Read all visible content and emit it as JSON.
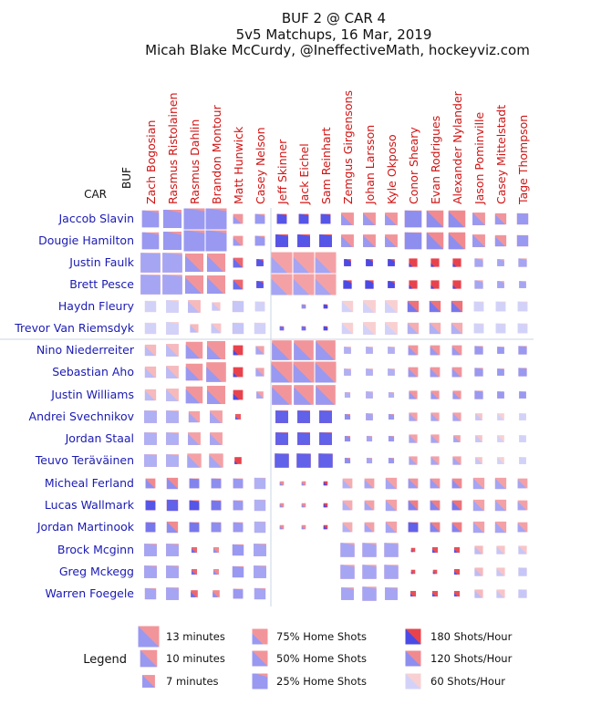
{
  "chart_data": {
    "type": "heatmap",
    "title": [
      "BUF 2 @ CAR 4",
      "5v5 Matchups, 16 Mar, 2019",
      "Micah Blake McCurdy, @IneffectiveMath, hockeyviz.com"
    ],
    "away_team": "BUF",
    "home_team": "CAR",
    "columns": [
      "Zach Bogosian",
      "Rasmus Ristolainen",
      "Rasmus Dahlin",
      "Brandon Montour",
      "Matt Hunwick",
      "Casey Nelson",
      "Jeff Skinner",
      "Jack Eichel",
      "Sam Reinhart",
      "Zemgus Girgensons",
      "Johan Larsson",
      "Kyle Okposo",
      "Conor Sheary",
      "Evan Rodrigues",
      "Alexander Nylander",
      "Jason Pominville",
      "Casey Mittelstadt",
      "Tage Thompson"
    ],
    "rows": [
      "Jaccob Slavin",
      "Dougie Hamilton",
      "Justin Faulk",
      "Brett Pesce",
      "Haydn Fleury",
      "Trevor Van Riemsdyk",
      "Nino Niederreiter",
      "Sebastian Aho",
      "Justin Williams",
      "Andrei Svechnikov",
      "Jordan Staal",
      "Teuvo Teräväinen",
      "Micheal Ferland",
      "Lucas Wallmark",
      "Jordan Martinook",
      "Brock Mcginn",
      "Greg Mckegg",
      "Warren Foegele"
    ],
    "minutes": [
      [
        10,
        11,
        13,
        13,
        5,
        5,
        5,
        5,
        5,
        7,
        7,
        7,
        10,
        10,
        10,
        7,
        6,
        6
      ],
      [
        10,
        11,
        13,
        13,
        5,
        5,
        7,
        7,
        7,
        7,
        7,
        7,
        10,
        10,
        10,
        7,
        6,
        6
      ],
      [
        12,
        12,
        11,
        11,
        5,
        3,
        13,
        13,
        13,
        3,
        3,
        3,
        4,
        4,
        4,
        4,
        3,
        4
      ],
      [
        12,
        12,
        11,
        11,
        5,
        3,
        13,
        13,
        13,
        4,
        4,
        3,
        4,
        4,
        4,
        4,
        3,
        3
      ],
      [
        6,
        7,
        7,
        4,
        6,
        5,
        0,
        1,
        1,
        6,
        7,
        7,
        6,
        6,
        6,
        5,
        5,
        5
      ],
      [
        6,
        7,
        4,
        5,
        6,
        6,
        1,
        1,
        1,
        6,
        7,
        7,
        6,
        6,
        6,
        5,
        5,
        5
      ],
      [
        6,
        7,
        10,
        11,
        5,
        4,
        12,
        12,
        12,
        3,
        3,
        3,
        5,
        5,
        5,
        4,
        3,
        4
      ],
      [
        6,
        7,
        10,
        12,
        5,
        4,
        13,
        13,
        13,
        3,
        3,
        3,
        5,
        5,
        5,
        4,
        3,
        4
      ],
      [
        6,
        7,
        10,
        11,
        5,
        3,
        12,
        12,
        12,
        2,
        3,
        2,
        4,
        4,
        4,
        4,
        3,
        3
      ],
      [
        7,
        7,
        6,
        7,
        2,
        0,
        7,
        7,
        7,
        2,
        3,
        2,
        4,
        4,
        4,
        3,
        3,
        3
      ],
      [
        7,
        7,
        7,
        7,
        0,
        0,
        7,
        7,
        7,
        2,
        2,
        2,
        4,
        4,
        3,
        3,
        3,
        3
      ],
      [
        7,
        7,
        8,
        8,
        3,
        0,
        8,
        8,
        8,
        2,
        2,
        2,
        4,
        4,
        4,
        3,
        3,
        3
      ],
      [
        5,
        6,
        5,
        5,
        5,
        6,
        1,
        1,
        1,
        5,
        5,
        6,
        5,
        5,
        5,
        6,
        6,
        5
      ],
      [
        5,
        6,
        5,
        5,
        5,
        6,
        1,
        1,
        1,
        5,
        5,
        6,
        5,
        5,
        5,
        6,
        6,
        5
      ],
      [
        5,
        6,
        5,
        5,
        5,
        6,
        1,
        1,
        1,
        5,
        5,
        6,
        5,
        5,
        5,
        6,
        6,
        5
      ],
      [
        7,
        7,
        2,
        2,
        6,
        7,
        0,
        0,
        0,
        8,
        8,
        8,
        1,
        2,
        2,
        4,
        4,
        4
      ],
      [
        7,
        7,
        2,
        2,
        6,
        7,
        0,
        0,
        0,
        8,
        8,
        8,
        1,
        1,
        2,
        4,
        4,
        4
      ],
      [
        6,
        7,
        3,
        3,
        5,
        6,
        0,
        0,
        0,
        7,
        8,
        7,
        2,
        2,
        2,
        4,
        4,
        4
      ]
    ],
    "home_shot_share": [
      [
        0.35,
        0.3,
        0.35,
        0.35,
        0.65,
        0.3,
        0.35,
        0.35,
        0.4,
        0.6,
        0.55,
        0.6,
        0.45,
        0.5,
        0.55,
        0.5,
        0.6,
        0.45
      ],
      [
        0.35,
        0.3,
        0.35,
        0.35,
        0.65,
        0.3,
        0.35,
        0.35,
        0.4,
        0.6,
        0.55,
        0.6,
        0.45,
        0.5,
        0.55,
        0.5,
        0.6,
        0.45
      ],
      [
        0.45,
        0.4,
        0.6,
        0.6,
        0.55,
        0.2,
        0.7,
        0.7,
        0.7,
        0.1,
        0.1,
        0.1,
        0.9,
        0.9,
        0.9,
        0.2,
        0.2,
        0.3
      ],
      [
        0.45,
        0.4,
        0.6,
        0.6,
        0.55,
        0.2,
        0.7,
        0.7,
        0.7,
        0.1,
        0.1,
        0.1,
        0.9,
        0.9,
        0.9,
        0.2,
        0.2,
        0.3
      ],
      [
        0.4,
        0.35,
        0.6,
        0.5,
        0.4,
        0.4,
        0.5,
        0.2,
        0.1,
        0.55,
        0.6,
        0.55,
        0.55,
        0.5,
        0.55,
        0.4,
        0.4,
        0.4
      ],
      [
        0.4,
        0.35,
        0.6,
        0.5,
        0.4,
        0.4,
        0.2,
        0.2,
        0.1,
        0.55,
        0.6,
        0.55,
        0.55,
        0.5,
        0.55,
        0.4,
        0.4,
        0.4
      ],
      [
        0.6,
        0.55,
        0.65,
        0.7,
        0.85,
        0.5,
        0.6,
        0.6,
        0.55,
        0.3,
        0.3,
        0.3,
        0.6,
        0.6,
        0.6,
        0.35,
        0.4,
        0.4
      ],
      [
        0.6,
        0.55,
        0.65,
        0.7,
        0.9,
        0.5,
        0.6,
        0.6,
        0.55,
        0.3,
        0.3,
        0.3,
        0.6,
        0.6,
        0.6,
        0.35,
        0.4,
        0.4
      ],
      [
        0.6,
        0.55,
        0.65,
        0.7,
        0.8,
        0.5,
        0.6,
        0.6,
        0.55,
        0.3,
        0.3,
        0.3,
        0.6,
        0.6,
        0.6,
        0.35,
        0.4,
        0.4
      ],
      [
        0.45,
        0.4,
        0.6,
        0.6,
        0.8,
        0.5,
        0.45,
        0.45,
        0.45,
        0.2,
        0.3,
        0.3,
        0.55,
        0.55,
        0.55,
        0.5,
        0.5,
        0.4
      ],
      [
        0.45,
        0.4,
        0.6,
        0.6,
        0.5,
        0.5,
        0.45,
        0.45,
        0.45,
        0.2,
        0.3,
        0.3,
        0.55,
        0.55,
        0.55,
        0.5,
        0.5,
        0.4
      ],
      [
        0.45,
        0.4,
        0.6,
        0.6,
        0.9,
        0.5,
        0.45,
        0.45,
        0.45,
        0.2,
        0.3,
        0.3,
        0.55,
        0.55,
        0.55,
        0.5,
        0.5,
        0.4
      ],
      [
        0.55,
        0.5,
        0.4,
        0.45,
        0.4,
        0.45,
        0.7,
        0.7,
        0.6,
        0.6,
        0.6,
        0.55,
        0.5,
        0.5,
        0.6,
        0.55,
        0.55,
        0.6
      ],
      [
        0.35,
        0.45,
        0.3,
        0.4,
        0.4,
        0.45,
        0.7,
        0.7,
        0.6,
        0.6,
        0.6,
        0.55,
        0.5,
        0.5,
        0.6,
        0.55,
        0.55,
        0.6
      ],
      [
        0.45,
        0.5,
        0.4,
        0.45,
        0.4,
        0.45,
        0.7,
        0.7,
        0.6,
        0.6,
        0.6,
        0.55,
        0.4,
        0.5,
        0.6,
        0.55,
        0.55,
        0.6
      ],
      [
        0.4,
        0.4,
        0.7,
        0.7,
        0.4,
        0.4,
        0.5,
        0.5,
        0.5,
        0.35,
        0.35,
        0.4,
        0.85,
        0.8,
        0.8,
        0.6,
        0.6,
        0.5
      ],
      [
        0.4,
        0.4,
        0.7,
        0.7,
        0.4,
        0.4,
        0.5,
        0.5,
        0.5,
        0.35,
        0.35,
        0.4,
        0.85,
        0.8,
        0.8,
        0.6,
        0.6,
        0.4
      ],
      [
        0.4,
        0.4,
        0.7,
        0.7,
        0.4,
        0.4,
        0.5,
        0.5,
        0.5,
        0.35,
        0.35,
        0.4,
        0.85,
        0.8,
        0.8,
        0.6,
        0.6,
        0.4
      ]
    ],
    "shots_per_hour": [
      [
        110,
        110,
        110,
        110,
        110,
        110,
        170,
        170,
        170,
        110,
        110,
        110,
        120,
        120,
        120,
        110,
        110,
        110
      ],
      [
        110,
        110,
        110,
        110,
        110,
        110,
        170,
        170,
        170,
        110,
        110,
        110,
        120,
        120,
        120,
        110,
        110,
        110
      ],
      [
        100,
        100,
        110,
        110,
        150,
        170,
        100,
        100,
        100,
        180,
        180,
        180,
        180,
        180,
        180,
        100,
        100,
        100
      ],
      [
        100,
        100,
        110,
        110,
        150,
        170,
        100,
        100,
        100,
        180,
        180,
        180,
        180,
        180,
        180,
        100,
        100,
        100
      ],
      [
        60,
        60,
        80,
        70,
        70,
        60,
        60,
        120,
        180,
        60,
        60,
        60,
        140,
        140,
        140,
        60,
        60,
        60
      ],
      [
        60,
        60,
        80,
        70,
        70,
        60,
        150,
        150,
        180,
        60,
        60,
        60,
        90,
        90,
        90,
        60,
        60,
        60
      ],
      [
        80,
        80,
        110,
        110,
        180,
        100,
        110,
        110,
        110,
        90,
        90,
        90,
        110,
        110,
        110,
        110,
        110,
        110
      ],
      [
        80,
        80,
        110,
        110,
        180,
        100,
        110,
        110,
        110,
        90,
        90,
        90,
        110,
        110,
        110,
        110,
        110,
        110
      ],
      [
        80,
        80,
        110,
        110,
        180,
        100,
        110,
        110,
        110,
        90,
        90,
        90,
        110,
        110,
        110,
        110,
        110,
        110
      ],
      [
        90,
        90,
        100,
        100,
        160,
        90,
        160,
        160,
        160,
        120,
        100,
        110,
        100,
        100,
        100,
        70,
        60,
        60
      ],
      [
        90,
        90,
        100,
        100,
        100,
        90,
        160,
        160,
        160,
        120,
        100,
        110,
        100,
        100,
        100,
        70,
        60,
        60
      ],
      [
        90,
        90,
        100,
        100,
        180,
        90,
        160,
        160,
        160,
        120,
        100,
        110,
        100,
        100,
        100,
        70,
        60,
        60
      ],
      [
        120,
        120,
        130,
        120,
        110,
        90,
        120,
        120,
        180,
        90,
        100,
        100,
        110,
        110,
        120,
        100,
        100,
        100
      ],
      [
        170,
        160,
        170,
        140,
        110,
        90,
        120,
        120,
        180,
        90,
        100,
        100,
        130,
        130,
        140,
        100,
        100,
        100
      ],
      [
        140,
        120,
        140,
        120,
        110,
        90,
        120,
        120,
        180,
        90,
        100,
        100,
        160,
        130,
        130,
        100,
        100,
        100
      ],
      [
        100,
        100,
        150,
        120,
        110,
        100,
        60,
        60,
        60,
        100,
        100,
        100,
        170,
        170,
        170,
        80,
        70,
        70
      ],
      [
        100,
        100,
        150,
        120,
        110,
        100,
        60,
        60,
        60,
        100,
        100,
        100,
        170,
        170,
        170,
        80,
        70,
        70
      ],
      [
        100,
        100,
        150,
        120,
        110,
        100,
        60,
        60,
        60,
        100,
        100,
        100,
        170,
        170,
        170,
        80,
        70,
        70
      ]
    ],
    "legend": {
      "title": "Legend",
      "size": [
        {
          "label": "13 minutes",
          "minutes": 13
        },
        {
          "label": "10 minutes",
          "minutes": 10
        },
        {
          "label": "7 minutes",
          "minutes": 7
        }
      ],
      "share": [
        {
          "label": "75% Home Shots",
          "value": 0.75
        },
        {
          "label": "50% Home Shots",
          "value": 0.5
        },
        {
          "label": "25% Home Shots",
          "value": 0.25
        }
      ],
      "rate": [
        {
          "label": "180 Shots/Hour",
          "value": 180
        },
        {
          "label": "120 Shots/Hour",
          "value": 120
        },
        {
          "label": "60 Shots/Hour",
          "value": 60
        }
      ]
    },
    "colors": {
      "home": "#e8434c",
      "away": "#4a4ae6",
      "row_label": "#1a1ab4",
      "col_label": "#d11414",
      "divider": "#c8d4e6"
    }
  }
}
